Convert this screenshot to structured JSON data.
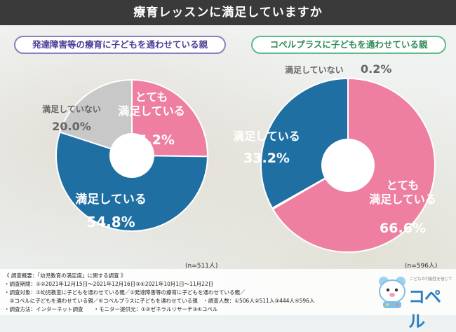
{
  "title": "療育レッスンに満足していますか",
  "panels": {
    "left": {
      "label": "発達障害等の療育に子どもを通わせている親",
      "n": "(n=511人)"
    },
    "right": {
      "label": "コペルプラスに子どもを通わせている親",
      "n": "(n=596人)"
    }
  },
  "colors": {
    "very_satisfied": "#ee7fa0",
    "satisfied": "#1f6fa3",
    "not_satisfied": "#c8c8c8"
  },
  "chart_data": [
    {
      "type": "pie",
      "title": "発達障害等の療育に子どもを通わせている親",
      "n_label": "(n=511人)",
      "slices": [
        {
          "label": "とても満足している",
          "line1": "とても",
          "line2": "満足している",
          "value": 25.2,
          "value_label": "25.2%"
        },
        {
          "label": "満足している",
          "line1": "満足している",
          "value": 54.8,
          "value_label": "54.8%"
        },
        {
          "label": "満足していない",
          "line1": "満足していない",
          "value": 20.0,
          "value_label": "20.0%"
        }
      ]
    },
    {
      "type": "pie",
      "title": "コペルプラスに子どもを通わせている親",
      "n_label": "(n=596人)",
      "slices": [
        {
          "label": "とても満足している",
          "line1": "とても",
          "line2": "満足している",
          "value": 66.6,
          "value_label": "66.6%"
        },
        {
          "label": "満足していない",
          "line1": "満足していない",
          "value": 0.2,
          "value_label": "0.2%"
        },
        {
          "label": "満足している",
          "line1": "満足している",
          "value": 33.2,
          "value_label": "33.2%"
        }
      ]
    }
  ],
  "notes": [
    "《 調査概要：「幼児教育の満足度」に関する調査 》",
    "・調査期間：①②2021年12月15日～2021年12月16日③④2021年10月1日～11月22日",
    "・調査対象：①幼児教室に子どもを通わせている親／②発達障害等の療育に子どもを通わせている親／",
    "　③コペルに子どもを通わせている親／④コペルプラスに子どもを通わせている親　・調査人数：①506人②511人③444人④596人",
    "・調査方法：インターネット調査　　・モニター提供元：①②ゼネラルリサーチ③④コペル"
  ],
  "logo": {
    "sub": "こどもの可能性を信じて",
    "name": "コペル"
  }
}
